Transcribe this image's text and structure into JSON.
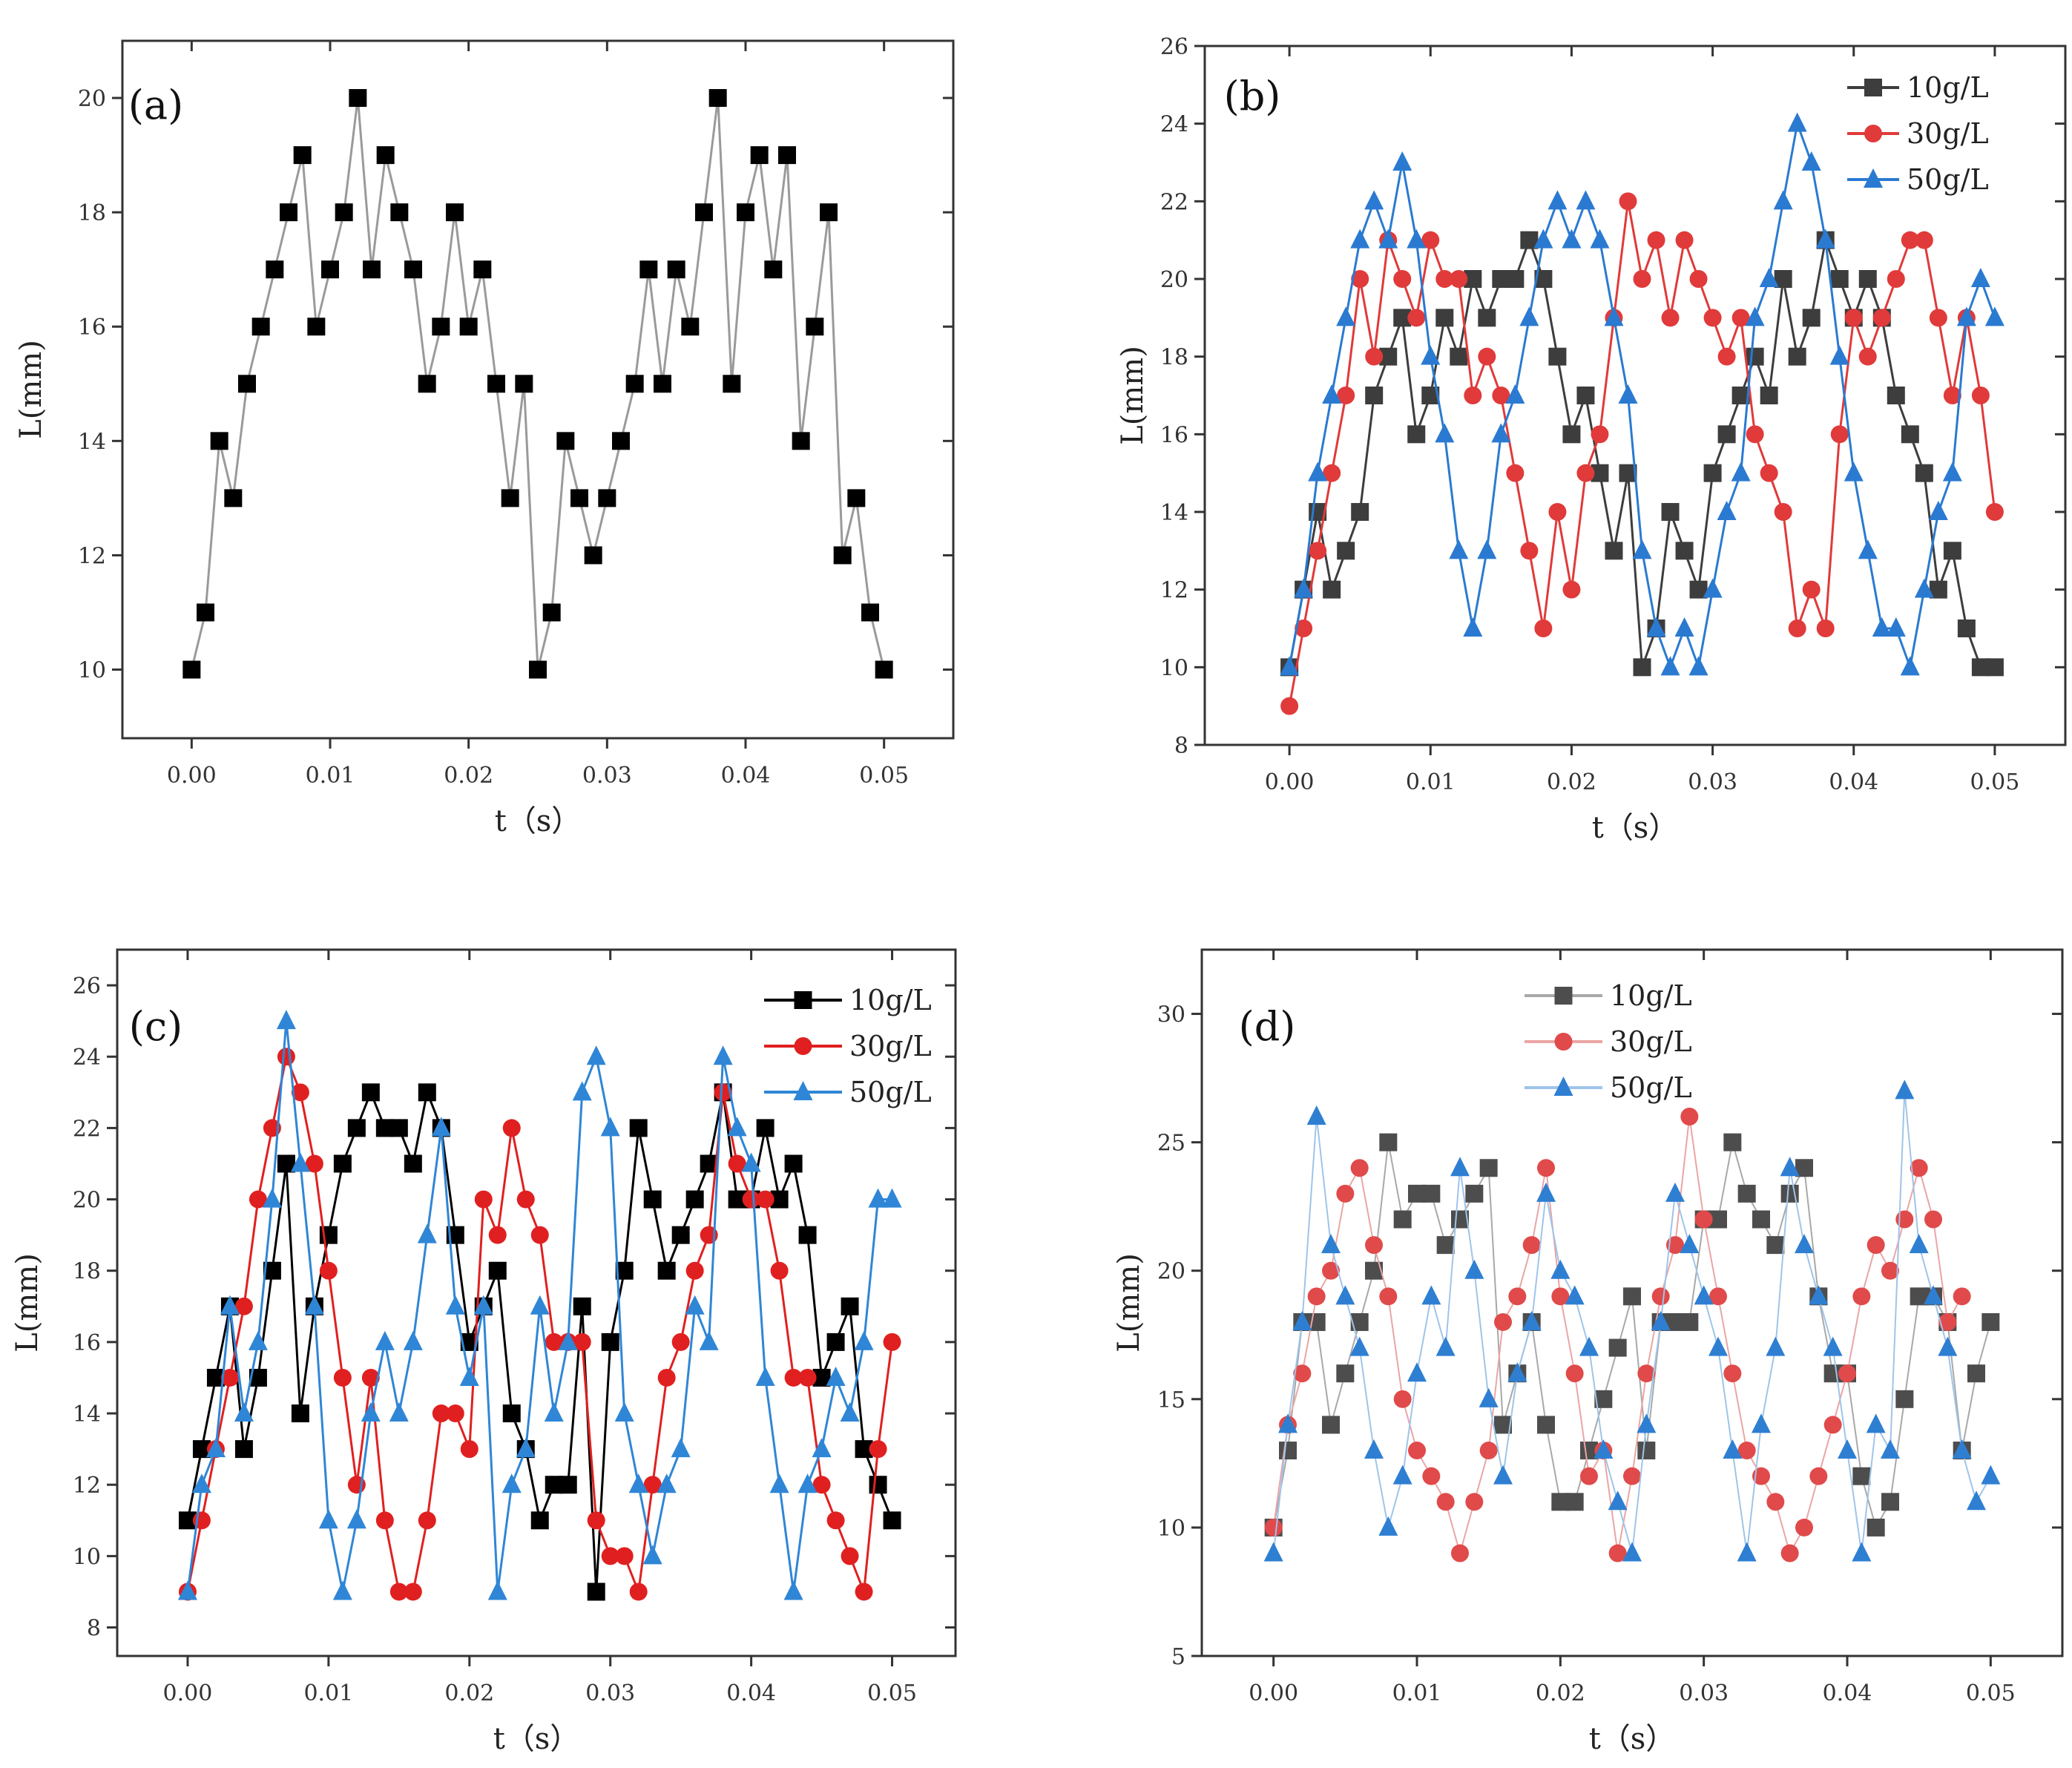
{
  "chart_data": [
    {
      "type": "line",
      "panel_label": "(a)",
      "xlabel": "t（s）",
      "ylabel": "L(mm)",
      "xlim": [
        -0.005,
        0.055
      ],
      "ylim": [
        8.8,
        21
      ],
      "xticks": [
        0.0,
        0.01,
        0.02,
        0.03,
        0.04,
        0.05
      ],
      "xtick_labels": [
        "0.00",
        "0.01",
        "0.02",
        "0.03",
        "0.04",
        "0.05"
      ],
      "yticks": [
        10,
        12,
        14,
        16,
        18,
        20
      ],
      "ytick_labels": [
        "10",
        "12",
        "14",
        "16",
        "18",
        "20"
      ],
      "x_step": 0.001,
      "series": [
        {
          "name": "",
          "color": "#000000",
          "line_color": "#9a9a9a",
          "marker": "square",
          "values": [
            10,
            11,
            14,
            13,
            15,
            16,
            17,
            18,
            19,
            16,
            17,
            18,
            20,
            17,
            19,
            18,
            17,
            15,
            16,
            18,
            16,
            17,
            15,
            13,
            15,
            10,
            11,
            14,
            13,
            12,
            13,
            14,
            15,
            17,
            15,
            17,
            16,
            18,
            20,
            15,
            18,
            19,
            17,
            19,
            14,
            16,
            18,
            12,
            13,
            11,
            10
          ]
        }
      ]
    },
    {
      "type": "line",
      "panel_label": "(b)",
      "xlabel": "t（s）",
      "ylabel": "L(mm)",
      "xlim": [
        -0.006,
        0.055
      ],
      "ylim": [
        8,
        26
      ],
      "xticks": [
        0.0,
        0.01,
        0.02,
        0.03,
        0.04,
        0.05
      ],
      "xtick_labels": [
        "0.00",
        "0.01",
        "0.02",
        "0.03",
        "0.04",
        "0.05"
      ],
      "yticks": [
        8,
        10,
        12,
        14,
        16,
        18,
        20,
        22,
        24,
        26
      ],
      "ytick_labels": [
        "8",
        "10",
        "12",
        "14",
        "16",
        "18",
        "20",
        "22",
        "24",
        "26"
      ],
      "x_step": 0.001,
      "legend": {
        "position": "top-right",
        "entries": [
          "10g/L",
          "30g/L",
          "50g/L"
        ]
      },
      "series": [
        {
          "name": "10g/L",
          "color": "#3d3d3d",
          "line_color": "#3d3d3d",
          "marker": "square",
          "values": [
            10,
            12,
            14,
            12,
            13,
            14,
            17,
            18,
            19,
            16,
            17,
            19,
            18,
            20,
            19,
            20,
            20,
            21,
            20,
            18,
            16,
            17,
            15,
            13,
            15,
            10,
            11,
            14,
            13,
            12,
            15,
            16,
            17,
            18,
            17,
            20,
            18,
            19,
            21,
            20,
            19,
            20,
            19,
            17,
            16,
            15,
            12,
            13,
            11,
            10,
            10
          ]
        },
        {
          "name": "30g/L",
          "color": "#e03a3a",
          "line_color": "#e03a3a",
          "marker": "circle",
          "values": [
            9,
            11,
            13,
            15,
            17,
            20,
            18,
            21,
            20,
            19,
            21,
            20,
            20,
            17,
            18,
            17,
            15,
            13,
            11,
            14,
            12,
            15,
            16,
            19,
            22,
            20,
            21,
            19,
            21,
            20,
            19,
            18,
            19,
            16,
            15,
            14,
            11,
            12,
            11,
            16,
            19,
            18,
            19,
            20,
            21,
            21,
            19,
            17,
            19,
            17,
            14
          ]
        },
        {
          "name": "50g/L",
          "color": "#2a7ad1",
          "line_color": "#2a7ad1",
          "marker": "triangle",
          "values": [
            10,
            12,
            15,
            17,
            19,
            21,
            22,
            21,
            23,
            21,
            18,
            16,
            13,
            11,
            13,
            16,
            17,
            19,
            21,
            22,
            21,
            22,
            21,
            19,
            17,
            13,
            11,
            10,
            11,
            10,
            12,
            14,
            15,
            19,
            20,
            22,
            24,
            23,
            21,
            18,
            15,
            13,
            11,
            11,
            10,
            12,
            14,
            15,
            19,
            20,
            19
          ]
        }
      ]
    },
    {
      "type": "line",
      "panel_label": "(c)",
      "xlabel": "t（s）",
      "ylabel": "L(mm)",
      "xlim": [
        -0.005,
        0.0545
      ],
      "ylim": [
        7.2,
        27
      ],
      "xticks": [
        0.0,
        0.01,
        0.02,
        0.03,
        0.04,
        0.05
      ],
      "xtick_labels": [
        "0.00",
        "0.01",
        "0.02",
        "0.03",
        "0.04",
        "0.05"
      ],
      "yticks": [
        8,
        10,
        12,
        14,
        16,
        18,
        20,
        22,
        24,
        26
      ],
      "ytick_labels": [
        "8",
        "10",
        "12",
        "14",
        "16",
        "18",
        "20",
        "22",
        "24",
        "26"
      ],
      "x_step": 0.001,
      "legend": {
        "position": "top-right",
        "entries": [
          "10g/L",
          "30g/L",
          "50g/L"
        ]
      },
      "series": [
        {
          "name": "10g/L",
          "color": "#000000",
          "line_color": "#000000",
          "marker": "square",
          "values": [
            11,
            13,
            15,
            17,
            13,
            15,
            18,
            21,
            14,
            17,
            19,
            21,
            22,
            23,
            22,
            22,
            21,
            23,
            22,
            19,
            16,
            17,
            18,
            14,
            13,
            11,
            12,
            12,
            17,
            9,
            16,
            18,
            22,
            20,
            18,
            19,
            20,
            21,
            23,
            20,
            20,
            22,
            20,
            21,
            19,
            15,
            16,
            17,
            13,
            12,
            11
          ]
        },
        {
          "name": "30g/L",
          "color": "#e02020",
          "line_color": "#e02020",
          "marker": "circle",
          "values": [
            9,
            11,
            13,
            15,
            17,
            20,
            22,
            24,
            23,
            21,
            18,
            15,
            12,
            15,
            11,
            9,
            9,
            11,
            14,
            14,
            13,
            20,
            19,
            22,
            20,
            19,
            16,
            16,
            16,
            11,
            10,
            10,
            9,
            12,
            15,
            16,
            18,
            19,
            23,
            21,
            20,
            20,
            18,
            15,
            15,
            12,
            11,
            10,
            9,
            13,
            16
          ]
        },
        {
          "name": "50g/L",
          "color": "#2f86d6",
          "line_color": "#2f86d6",
          "marker": "triangle",
          "values": [
            9,
            12,
            13,
            17,
            14,
            16,
            20,
            25,
            21,
            17,
            11,
            9,
            11,
            14,
            16,
            14,
            16,
            19,
            22,
            17,
            15,
            17,
            9,
            12,
            13,
            17,
            14,
            16,
            23,
            24,
            22,
            14,
            12,
            10,
            12,
            13,
            17,
            16,
            24,
            22,
            21,
            15,
            12,
            9,
            12,
            13,
            15,
            14,
            16,
            20,
            20
          ]
        }
      ]
    },
    {
      "type": "line",
      "panel_label": "(d)",
      "xlabel": "t（s）",
      "ylabel": "L(mm)",
      "xlim": [
        -0.005,
        0.055
      ],
      "ylim": [
        5,
        32.5
      ],
      "xticks": [
        0.0,
        0.01,
        0.02,
        0.03,
        0.04,
        0.05
      ],
      "xtick_labels": [
        "0.00",
        "0.01",
        "0.02",
        "0.03",
        "0.04",
        "0.05"
      ],
      "yticks": [
        5,
        10,
        15,
        20,
        25,
        30
      ],
      "ytick_labels": [
        "5",
        "10",
        "15",
        "20",
        "25",
        "30"
      ],
      "x_step": 0.001,
      "legend": {
        "position": "top-left",
        "entries": [
          "10g/L",
          "30g/L",
          "50g/L"
        ]
      },
      "series": [
        {
          "name": "10g/L",
          "color": "#4d4d4d",
          "line_color": "#a8a8a8",
          "marker": "square",
          "values": [
            10,
            13,
            18,
            18,
            14,
            16,
            18,
            20,
            25,
            22,
            23,
            23,
            21,
            22,
            23,
            24,
            14,
            16,
            18,
            14,
            11,
            11,
            13,
            15,
            17,
            19,
            13,
            18,
            18,
            18,
            22,
            22,
            25,
            23,
            22,
            21,
            23,
            24,
            19,
            16,
            16,
            12,
            10,
            11,
            15,
            19,
            19,
            18,
            13,
            16,
            18
          ]
        },
        {
          "name": "30g/L",
          "color": "#e04a4a",
          "line_color": "#eba5a5",
          "marker": "circle",
          "values": [
            10,
            14,
            16,
            19,
            20,
            23,
            24,
            21,
            19,
            15,
            13,
            12,
            11,
            9,
            11,
            13,
            18,
            19,
            21,
            24,
            19,
            16,
            12,
            13,
            9,
            12,
            16,
            19,
            21,
            26,
            22,
            19,
            16,
            13,
            12,
            11,
            9,
            10,
            12,
            14,
            16,
            19,
            21,
            20,
            22,
            24,
            22,
            18,
            19
          ]
        },
        {
          "name": "50g/L",
          "color": "#2e7fd2",
          "line_color": "#9fc4ea",
          "marker": "triangle",
          "values": [
            9,
            14,
            18,
            26,
            21,
            19,
            17,
            13,
            10,
            12,
            16,
            19,
            17,
            24,
            20,
            15,
            12,
            16,
            18,
            23,
            20,
            19,
            17,
            13,
            11,
            9,
            14,
            18,
            23,
            21,
            19,
            17,
            13,
            9,
            14,
            17,
            24,
            21,
            19,
            17,
            13,
            9,
            14,
            13,
            27,
            21,
            19,
            17,
            13,
            11,
            12
          ]
        }
      ]
    }
  ]
}
